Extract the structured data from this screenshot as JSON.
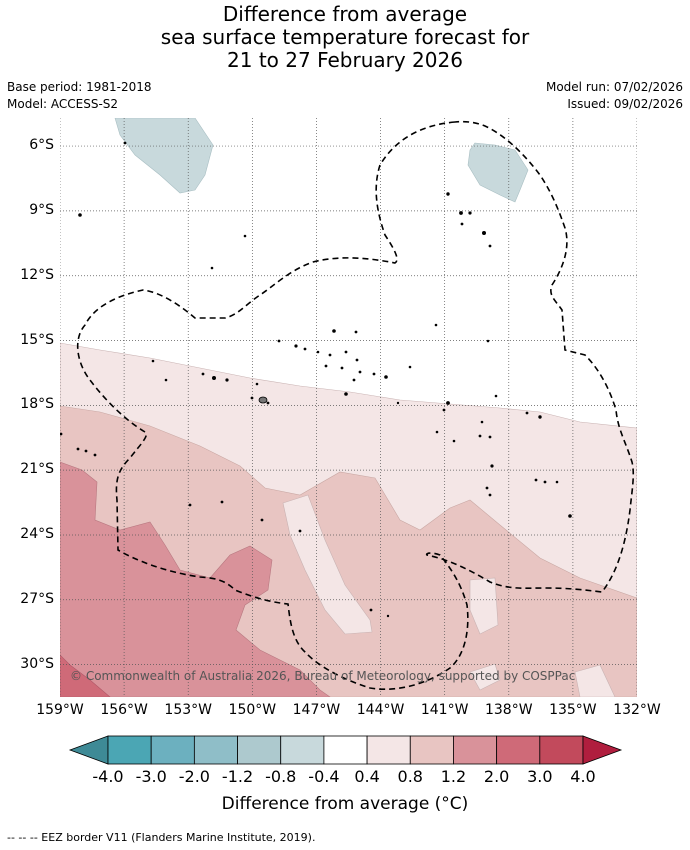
{
  "title": {
    "line1": "Difference from average",
    "line2": "sea surface temperature forecast for",
    "line3": "21 to 27 February 2026"
  },
  "meta": {
    "base_period": "Base period: 1981-2018",
    "model": "Model: ACCESS-S2",
    "model_run": "Model run: 07/02/2026",
    "issued": "Issued: 09/02/2026"
  },
  "map": {
    "lon_range": [
      -159,
      -132
    ],
    "lat_range": [
      -31.5,
      -4.7
    ],
    "lat_labels": [
      "6°S",
      "9°S",
      "12°S",
      "15°S",
      "18°S",
      "21°S",
      "24°S",
      "27°S",
      "30°S"
    ],
    "lat_values": [
      -6,
      -9,
      -12,
      -15,
      -18,
      -21,
      -24,
      -27,
      -30
    ],
    "lon_labels": [
      "159°W",
      "156°W",
      "153°W",
      "150°W",
      "147°W",
      "144°W",
      "141°W",
      "138°W",
      "135°W",
      "132°W"
    ],
    "lon_values": [
      -159,
      -156,
      -153,
      -150,
      -147,
      -144,
      -141,
      -138,
      -135,
      -132
    ],
    "copyright": "© Commonwealth of Australia 2026, Bureau of Meteorology, supported by COSPPac",
    "grid": true
  },
  "colorbar": {
    "colors": [
      "#3e8a96",
      "#4ba6b4",
      "#6cb0bf",
      "#8fbec8",
      "#adc9ce",
      "#c8d9dc",
      "#ffffff",
      "#f4e6e6",
      "#e8c5c2",
      "#d9929a",
      "#cf6a78",
      "#c24a5c",
      "#b01e3e"
    ],
    "tick_labels": [
      "-4.0",
      "-3.0",
      "-2.0",
      "-1.2",
      "-0.8",
      "-0.4",
      "0.4",
      "0.8",
      "1.2",
      "2.0",
      "3.0",
      "4.0"
    ],
    "label": "Difference from average (°C)"
  },
  "footnote": "--  --  -- EEZ border V11 (Flanders Marine Institute, 2019)."
}
